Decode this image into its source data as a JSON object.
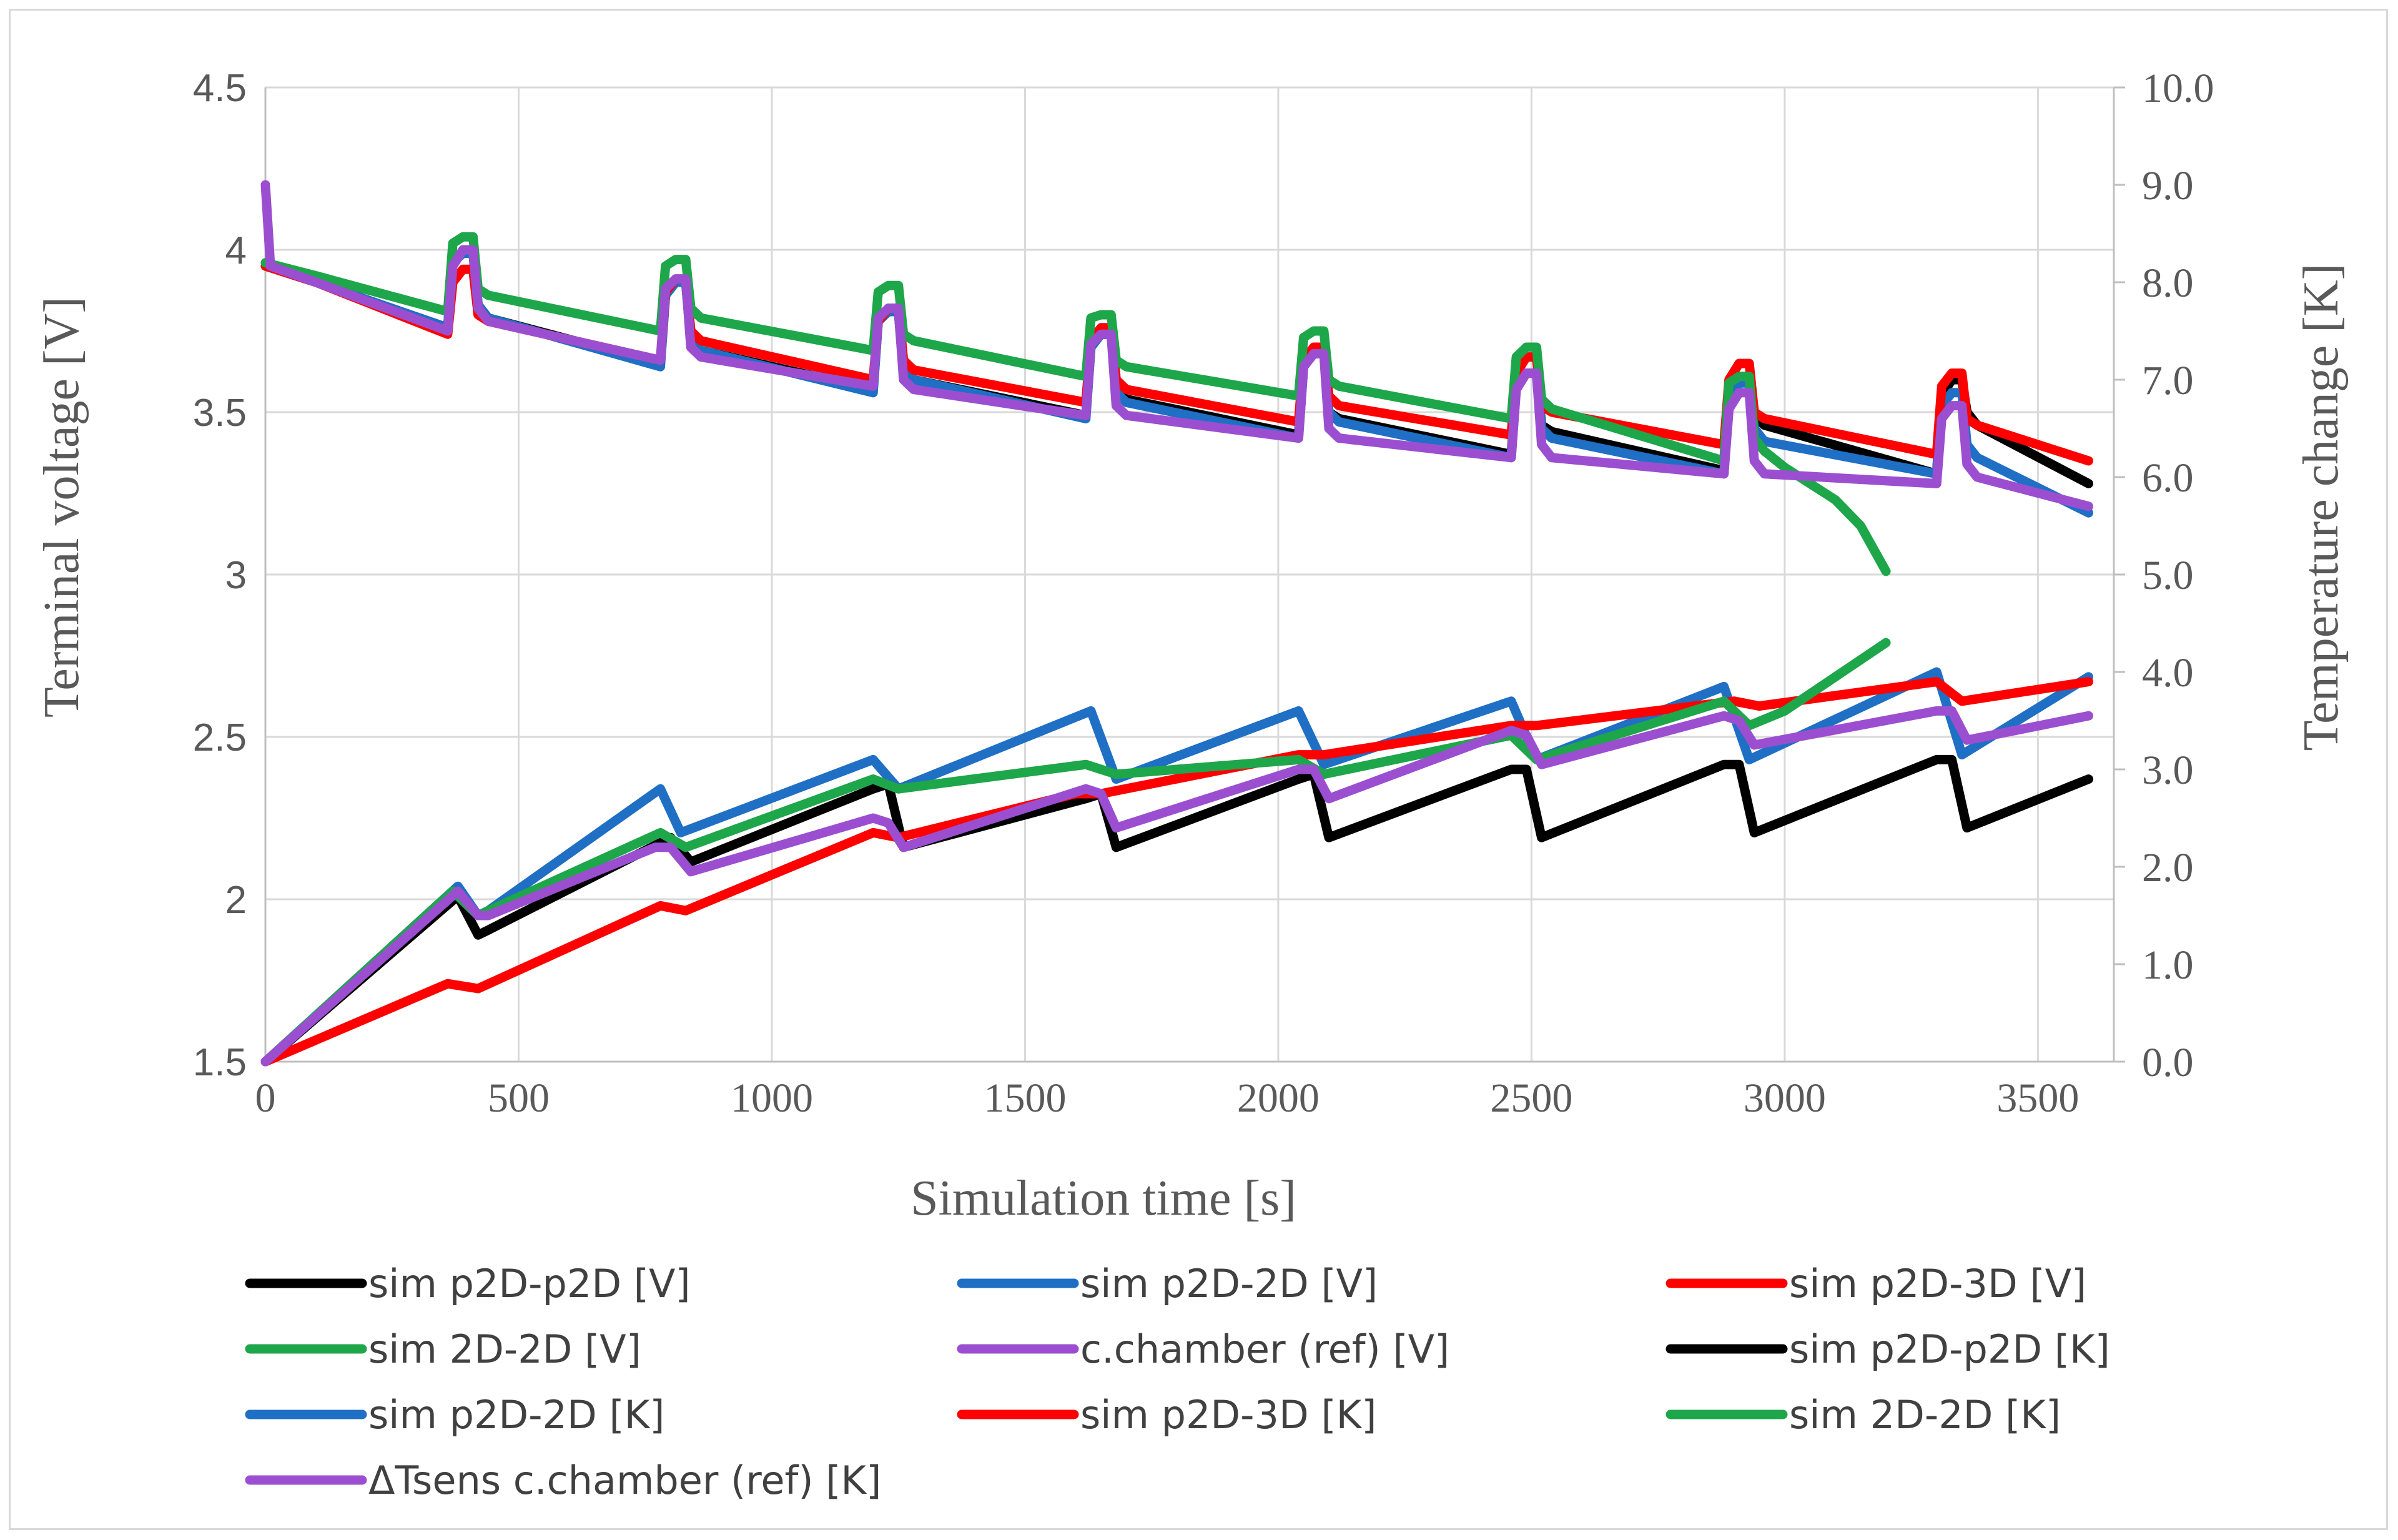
{
  "chart_data": {
    "type": "line",
    "xlabel": "Simulation time [s]",
    "ylabel": "Terminal voltage [V]",
    "y2label": "Temperature change [K]",
    "xlim": [
      0,
      3650
    ],
    "ylim": [
      1.5,
      4.5
    ],
    "y2lim": [
      0.0,
      10.0
    ],
    "x_ticks": [
      "0",
      "500",
      "1000",
      "1500",
      "2000",
      "2500",
      "3000",
      "3500"
    ],
    "y_ticks": [
      "1.5",
      "2",
      "2.5",
      "3",
      "3.5",
      "4",
      "4.5"
    ],
    "y2_ticks": [
      "0.0",
      "1.0",
      "2.0",
      "3.0",
      "4.0",
      "5.0",
      "6.0",
      "7.0",
      "8.0",
      "9.0",
      "10.0"
    ],
    "grid": true,
    "legend_position": "bottom",
    "series": [
      {
        "name": "sim p2D-p2D [V]",
        "axis": "left",
        "color": "#000000",
        "x": [
          0,
          100,
          360,
          370,
          390,
          410,
          420,
          440,
          780,
          790,
          810,
          830,
          840,
          860,
          1200,
          1210,
          1230,
          1250,
          1260,
          1280,
          1620,
          1630,
          1650,
          1670,
          1680,
          1700,
          2040,
          2050,
          2070,
          2090,
          2100,
          2120,
          2460,
          2470,
          2490,
          2510,
          2520,
          2540,
          2880,
          2890,
          2910,
          2930,
          2940,
          2960,
          3300,
          3310,
          3330,
          3350,
          3360,
          3380,
          3600
        ],
        "y": [
          3.95,
          3.9,
          3.76,
          3.96,
          3.99,
          3.99,
          3.83,
          3.79,
          3.65,
          3.86,
          3.9,
          3.9,
          3.72,
          3.69,
          3.57,
          3.78,
          3.81,
          3.81,
          3.62,
          3.6,
          3.49,
          3.7,
          3.74,
          3.74,
          3.56,
          3.54,
          3.43,
          3.64,
          3.68,
          3.68,
          3.5,
          3.48,
          3.37,
          3.58,
          3.62,
          3.62,
          3.46,
          3.44,
          3.32,
          3.55,
          3.6,
          3.6,
          3.49,
          3.46,
          3.31,
          3.55,
          3.6,
          3.6,
          3.5,
          3.46,
          3.28
        ]
      },
      {
        "name": "sim p2D-2D [V]",
        "axis": "left",
        "color": "#1f6fc5",
        "x": [
          0,
          100,
          360,
          370,
          390,
          410,
          420,
          440,
          780,
          790,
          810,
          830,
          840,
          860,
          1200,
          1210,
          1230,
          1250,
          1260,
          1280,
          1620,
          1630,
          1650,
          1670,
          1680,
          1700,
          2040,
          2050,
          2070,
          2090,
          2100,
          2120,
          2460,
          2470,
          2490,
          2510,
          2520,
          2540,
          2880,
          2890,
          2910,
          2930,
          2940,
          2960,
          3300,
          3310,
          3330,
          3350,
          3360,
          3380,
          3600
        ],
        "y": [
          3.95,
          3.9,
          3.76,
          3.96,
          3.99,
          3.99,
          3.83,
          3.79,
          3.64,
          3.86,
          3.9,
          3.9,
          3.72,
          3.69,
          3.56,
          3.78,
          3.81,
          3.81,
          3.62,
          3.6,
          3.48,
          3.7,
          3.74,
          3.74,
          3.56,
          3.53,
          3.42,
          3.64,
          3.68,
          3.68,
          3.5,
          3.47,
          3.36,
          3.58,
          3.62,
          3.62,
          3.45,
          3.42,
          3.31,
          3.54,
          3.59,
          3.59,
          3.45,
          3.41,
          3.31,
          3.52,
          3.56,
          3.56,
          3.4,
          3.36,
          3.19
        ]
      },
      {
        "name": "sim p2D-3D [V]",
        "axis": "left",
        "color": "#ff0000",
        "x": [
          0,
          100,
          360,
          370,
          390,
          410,
          420,
          440,
          780,
          790,
          810,
          830,
          840,
          860,
          1200,
          1210,
          1230,
          1250,
          1260,
          1280,
          1620,
          1630,
          1650,
          1670,
          1680,
          1700,
          2040,
          2050,
          2070,
          2090,
          2100,
          2120,
          2460,
          2470,
          2490,
          2510,
          2520,
          2540,
          2880,
          2890,
          2910,
          2930,
          2940,
          2960,
          3300,
          3310,
          3330,
          3350,
          3360,
          3380,
          3600
        ],
        "y": [
          3.95,
          3.9,
          3.74,
          3.9,
          3.94,
          3.94,
          3.8,
          3.78,
          3.66,
          3.87,
          3.91,
          3.91,
          3.75,
          3.72,
          3.6,
          3.78,
          3.82,
          3.82,
          3.66,
          3.63,
          3.53,
          3.72,
          3.76,
          3.76,
          3.6,
          3.57,
          3.47,
          3.66,
          3.7,
          3.7,
          3.55,
          3.52,
          3.43,
          3.62,
          3.67,
          3.67,
          3.52,
          3.5,
          3.4,
          3.6,
          3.65,
          3.65,
          3.5,
          3.48,
          3.37,
          3.58,
          3.62,
          3.62,
          3.48,
          3.46,
          3.35
        ]
      },
      {
        "name": "sim 2D-2D [V]",
        "axis": "left",
        "color": "#1ea64a",
        "x": [
          0,
          100,
          360,
          370,
          390,
          410,
          420,
          440,
          780,
          790,
          810,
          830,
          840,
          860,
          1200,
          1210,
          1230,
          1250,
          1260,
          1280,
          1620,
          1630,
          1650,
          1670,
          1680,
          1700,
          2040,
          2050,
          2070,
          2090,
          2100,
          2120,
          2460,
          2470,
          2490,
          2510,
          2520,
          2540,
          2880,
          2890,
          2910,
          2930,
          2940,
          2960,
          3000,
          3100,
          3150,
          3200
        ],
        "y": [
          3.96,
          3.92,
          3.81,
          4.02,
          4.04,
          4.04,
          3.88,
          3.86,
          3.75,
          3.95,
          3.97,
          3.97,
          3.82,
          3.79,
          3.69,
          3.87,
          3.89,
          3.89,
          3.74,
          3.72,
          3.61,
          3.79,
          3.8,
          3.8,
          3.66,
          3.64,
          3.55,
          3.73,
          3.75,
          3.75,
          3.6,
          3.58,
          3.48,
          3.67,
          3.7,
          3.7,
          3.54,
          3.51,
          3.35,
          3.59,
          3.61,
          3.61,
          3.42,
          3.38,
          3.33,
          3.23,
          3.15,
          3.01
        ]
      },
      {
        "name": "c.chamber (ref) [V]",
        "axis": "left",
        "color": "#9b4fd0",
        "x": [
          0,
          10,
          100,
          360,
          370,
          390,
          410,
          420,
          440,
          780,
          790,
          810,
          830,
          840,
          860,
          1200,
          1210,
          1230,
          1250,
          1260,
          1280,
          1620,
          1630,
          1650,
          1670,
          1680,
          1700,
          2040,
          2050,
          2070,
          2090,
          2100,
          2120,
          2460,
          2470,
          2490,
          2510,
          2520,
          2540,
          2880,
          2890,
          2910,
          2930,
          2940,
          2960,
          3300,
          3310,
          3330,
          3350,
          3360,
          3380,
          3600
        ],
        "y": [
          4.2,
          3.95,
          3.9,
          3.75,
          3.95,
          4.0,
          4.0,
          3.82,
          3.78,
          3.66,
          3.88,
          3.91,
          3.91,
          3.7,
          3.67,
          3.58,
          3.79,
          3.82,
          3.82,
          3.6,
          3.57,
          3.49,
          3.71,
          3.74,
          3.74,
          3.52,
          3.49,
          3.42,
          3.64,
          3.68,
          3.68,
          3.45,
          3.42,
          3.36,
          3.57,
          3.62,
          3.62,
          3.4,
          3.36,
          3.31,
          3.51,
          3.56,
          3.56,
          3.35,
          3.31,
          3.28,
          3.48,
          3.52,
          3.52,
          3.34,
          3.3,
          3.21
        ]
      },
      {
        "name": "sim p2D-p2D [K]",
        "axis": "right",
        "color": "#000000",
        "x": [
          0,
          380,
          420,
          440,
          800,
          840,
          1200,
          1230,
          1260,
          1620,
          1650,
          1680,
          2040,
          2070,
          2100,
          2460,
          2490,
          2520,
          2880,
          2910,
          2940,
          3300,
          3330,
          3360,
          3600
        ],
        "y": [
          0.0,
          1.7,
          1.3,
          1.35,
          2.3,
          2.05,
          2.8,
          2.85,
          2.2,
          2.7,
          2.75,
          2.2,
          2.9,
          2.95,
          2.3,
          3.0,
          3.0,
          2.3,
          3.05,
          3.05,
          2.35,
          3.1,
          3.1,
          2.4,
          2.9
        ]
      },
      {
        "name": "sim p2D-2D [K]",
        "axis": "right",
        "color": "#1f6fc5",
        "x": [
          0,
          380,
          420,
          440,
          780,
          820,
          1200,
          1250,
          1630,
          1680,
          2040,
          2090,
          2460,
          2510,
          2880,
          2930,
          3300,
          3350,
          3600
        ],
        "y": [
          0.0,
          1.8,
          1.5,
          1.55,
          2.8,
          2.35,
          3.1,
          2.8,
          3.6,
          2.9,
          3.6,
          3.05,
          3.7,
          3.1,
          3.85,
          3.1,
          4.0,
          3.15,
          3.95
        ]
      },
      {
        "name": "sim p2D-3D [K]",
        "axis": "right",
        "color": "#ff0000",
        "x": [
          0,
          360,
          420,
          780,
          830,
          1200,
          1250,
          1600,
          1650,
          2040,
          2090,
          2460,
          2510,
          2900,
          2950,
          3300,
          3350,
          3600
        ],
        "y": [
          0.0,
          0.8,
          0.75,
          1.6,
          1.55,
          2.35,
          2.3,
          2.75,
          2.75,
          3.15,
          3.15,
          3.45,
          3.45,
          3.7,
          3.65,
          3.9,
          3.7,
          3.9
        ]
      },
      {
        "name": "sim 2D-2D [K]",
        "axis": "right",
        "color": "#1ea64a",
        "x": [
          0,
          370,
          420,
          780,
          830,
          1200,
          1250,
          1620,
          1680,
          2040,
          2090,
          2460,
          2510,
          2880,
          2930,
          3000,
          3100,
          3200
        ],
        "y": [
          0.0,
          1.75,
          1.5,
          2.35,
          2.2,
          2.9,
          2.8,
          3.05,
          2.95,
          3.1,
          2.95,
          3.35,
          3.1,
          3.7,
          3.45,
          3.6,
          3.95,
          4.3
        ]
      },
      {
        "name": "ΔTsens c.chamber (ref) [K]",
        "axis": "right",
        "color": "#9b4fd0",
        "x": [
          0,
          380,
          420,
          440,
          770,
          800,
          840,
          1200,
          1230,
          1260,
          1620,
          1650,
          1680,
          2040,
          2070,
          2100,
          2460,
          2490,
          2520,
          2880,
          2910,
          2940,
          3300,
          3330,
          3360,
          3600
        ],
        "y": [
          0.0,
          1.75,
          1.5,
          1.5,
          2.2,
          2.2,
          1.95,
          2.5,
          2.45,
          2.2,
          2.8,
          2.75,
          2.4,
          3.0,
          3.0,
          2.7,
          3.4,
          3.35,
          3.05,
          3.55,
          3.5,
          3.25,
          3.6,
          3.6,
          3.3,
          3.55
        ]
      }
    ]
  }
}
